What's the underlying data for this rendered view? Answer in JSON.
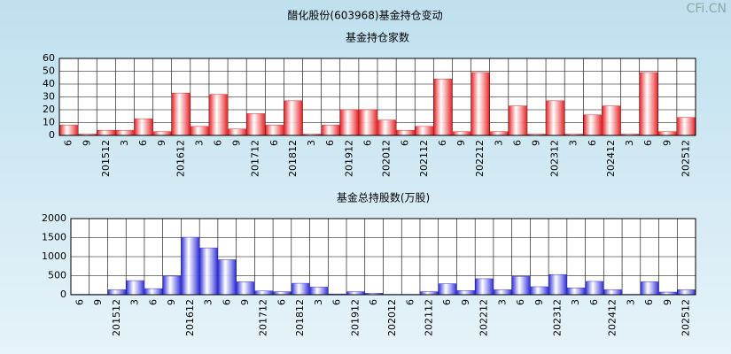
{
  "title": "醋化股份(603968)基金持仓变动",
  "watermark": "CFi.CN",
  "chart_data": [
    {
      "type": "bar",
      "title": "基金持仓家数",
      "categories": [
        "6",
        "9",
        "201512",
        "3",
        "6",
        "9",
        "201612",
        "3",
        "6",
        "9",
        "201712",
        "6",
        "201812",
        "3",
        "6",
        "201912",
        "6",
        "202012",
        "6",
        "202112",
        "6",
        "9",
        "202212",
        "3",
        "6",
        "9",
        "202312",
        "3",
        "6",
        "202412",
        "3",
        "6",
        "9",
        "202512"
      ],
      "values": [
        8,
        1,
        4,
        4,
        13,
        3,
        33,
        7,
        32,
        5,
        17,
        8,
        27,
        1,
        8,
        20,
        20,
        12,
        4,
        7,
        44,
        3,
        49,
        3,
        23,
        1,
        27,
        1,
        16,
        23,
        1,
        49,
        3,
        14
      ],
      "color": "#e8262a",
      "ylim": [
        0,
        60
      ],
      "yticks": [
        0,
        10,
        20,
        30,
        40,
        50,
        60
      ],
      "grid": true
    },
    {
      "type": "bar",
      "title": "基金总持股数(万股)",
      "categories": [
        "6",
        "9",
        "201512",
        "3",
        "6",
        "9",
        "201612",
        "3",
        "6",
        "9",
        "201712",
        "6",
        "201812",
        "3",
        "6",
        "201912",
        "6",
        "202012",
        "6",
        "202112",
        "6",
        "9",
        "202212",
        "3",
        "6",
        "9",
        "202312",
        "3",
        "6",
        "202412",
        "3",
        "6",
        "9",
        "202512"
      ],
      "values": [
        10,
        10,
        130,
        370,
        160,
        490,
        1510,
        1230,
        920,
        340,
        100,
        80,
        300,
        200,
        20,
        80,
        40,
        10,
        10,
        80,
        290,
        110,
        420,
        130,
        480,
        210,
        530,
        180,
        350,
        130,
        10,
        340,
        70,
        130
      ],
      "color": "#3333dd",
      "ylim": [
        0,
        2000
      ],
      "yticks": [
        0,
        500,
        1000,
        1500,
        2000
      ],
      "grid": true
    }
  ]
}
